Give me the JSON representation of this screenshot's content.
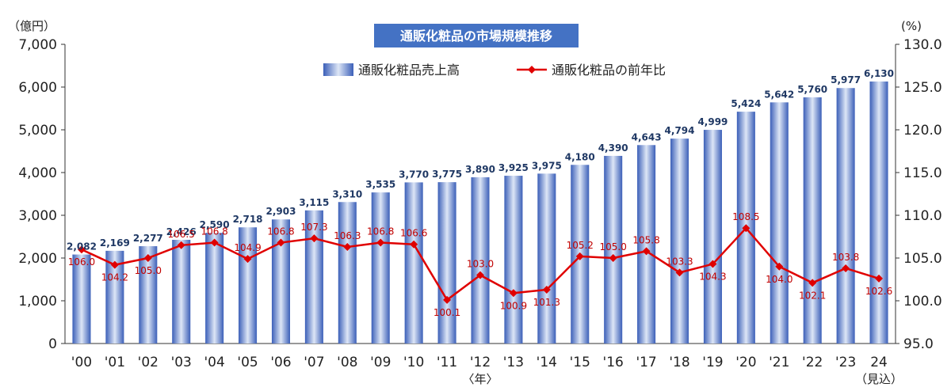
{
  "chart_data": {
    "type": "bar",
    "title": "通販化粧品の市場規模推移",
    "y_left_unit": "（億円）",
    "y_right_unit": "(%)",
    "y_left_ticks": [
      "7,000",
      "6,000",
      "5,000",
      "4,000",
      "3,000",
      "2,000",
      "1,000",
      "0"
    ],
    "y_right_ticks": [
      "130.0",
      "125.0",
      "120.0",
      "115.0",
      "110.0",
      "105.0",
      "100.0",
      "95.0"
    ],
    "ylim_left": [
      0,
      7000
    ],
    "ylim_right": [
      95,
      130
    ],
    "x_unit_label": "〈年〉",
    "last_x_note": "（見込）",
    "categories": [
      "'00",
      "'01",
      "'02",
      "'03",
      "'04",
      "'05",
      "'06",
      "'07",
      "'08",
      "'09",
      "'10",
      "'11",
      "'12",
      "'13",
      "'14",
      "'15",
      "'16",
      "'17",
      "'18",
      "'19",
      "'20",
      "'21",
      "'22",
      "'23",
      "24"
    ],
    "series": [
      {
        "name": "通販化粧品売上高",
        "type": "bar",
        "axis": "left",
        "color": "#4472c4",
        "values": [
          2082,
          2169,
          2277,
          2426,
          2590,
          2718,
          2903,
          3115,
          3310,
          3535,
          3770,
          3775,
          3890,
          3925,
          3975,
          4180,
          4390,
          4643,
          4794,
          4999,
          5424,
          5642,
          5760,
          5977,
          6130
        ],
        "labels": [
          "2,082",
          "2,169",
          "2,277",
          "2,426",
          "2,590",
          "2,718",
          "2,903",
          "3,115",
          "3,310",
          "3,535",
          "3,770",
          "3,775",
          "3,890",
          "3,925",
          "3,975",
          "4,180",
          "4,390",
          "4,643",
          "4,794",
          "4,999",
          "5,424",
          "5,642",
          "5,760",
          "5,977",
          "6,130"
        ]
      },
      {
        "name": "通販化粧品の前年比",
        "type": "line",
        "axis": "right",
        "color": "#e00000",
        "values": [
          106.0,
          104.2,
          105.0,
          106.5,
          106.8,
          104.9,
          106.8,
          107.3,
          106.3,
          106.8,
          106.6,
          100.1,
          103.0,
          100.9,
          101.3,
          105.2,
          105.0,
          105.8,
          103.3,
          104.3,
          108.5,
          104.0,
          102.1,
          103.8,
          102.6
        ],
        "labels": [
          "106.0",
          "104.2",
          "105.0",
          "106.5",
          "106.8",
          "104.9",
          "106.8",
          "107.3",
          "106.3",
          "106.8",
          "106.6",
          "100.1",
          "103.0",
          "100.9",
          "101.3",
          "105.2",
          "105.0",
          "105.8",
          "103.3",
          "104.3",
          "108.5",
          "104.0",
          "102.1",
          "103.8",
          "102.6"
        ]
      }
    ],
    "grid": false,
    "legend_position": "top"
  }
}
